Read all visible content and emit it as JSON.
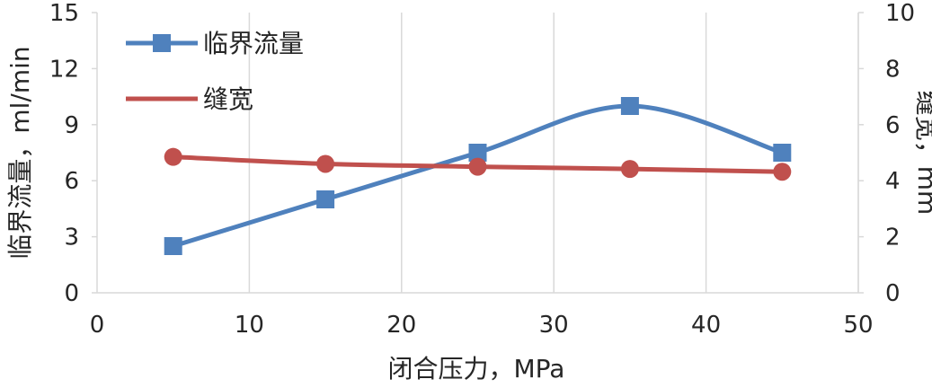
{
  "chart_data": {
    "type": "line",
    "x": [
      5,
      15,
      25,
      35,
      45
    ],
    "xlabel": "闭合压力，MPa",
    "xlim": [
      0,
      50
    ],
    "xticks": [
      "0",
      "10",
      "20",
      "30",
      "40",
      "50"
    ],
    "ylabel_left": "临界流量，ml/min",
    "ylim_left": [
      0,
      15
    ],
    "yticks_left": [
      "0",
      "3",
      "6",
      "9",
      "12",
      "15"
    ],
    "ylabel_right": "缝宽，mm",
    "ylim_right": [
      0,
      10
    ],
    "yticks_right": [
      "0",
      "2",
      "4",
      "6",
      "8",
      "10"
    ],
    "grid": "vertical",
    "legend_position": "top-left",
    "series": [
      {
        "name": "临界流量",
        "axis": "left",
        "values": [
          2.5,
          5.0,
          7.5,
          10.0,
          7.5
        ],
        "color": "#4f81bd",
        "marker": "square",
        "smooth": true
      },
      {
        "name": "缝宽",
        "axis": "right",
        "values": [
          4.85,
          4.6,
          4.5,
          4.42,
          4.32
        ],
        "color": "#c0504d",
        "marker": "circle",
        "smooth": true
      }
    ]
  }
}
